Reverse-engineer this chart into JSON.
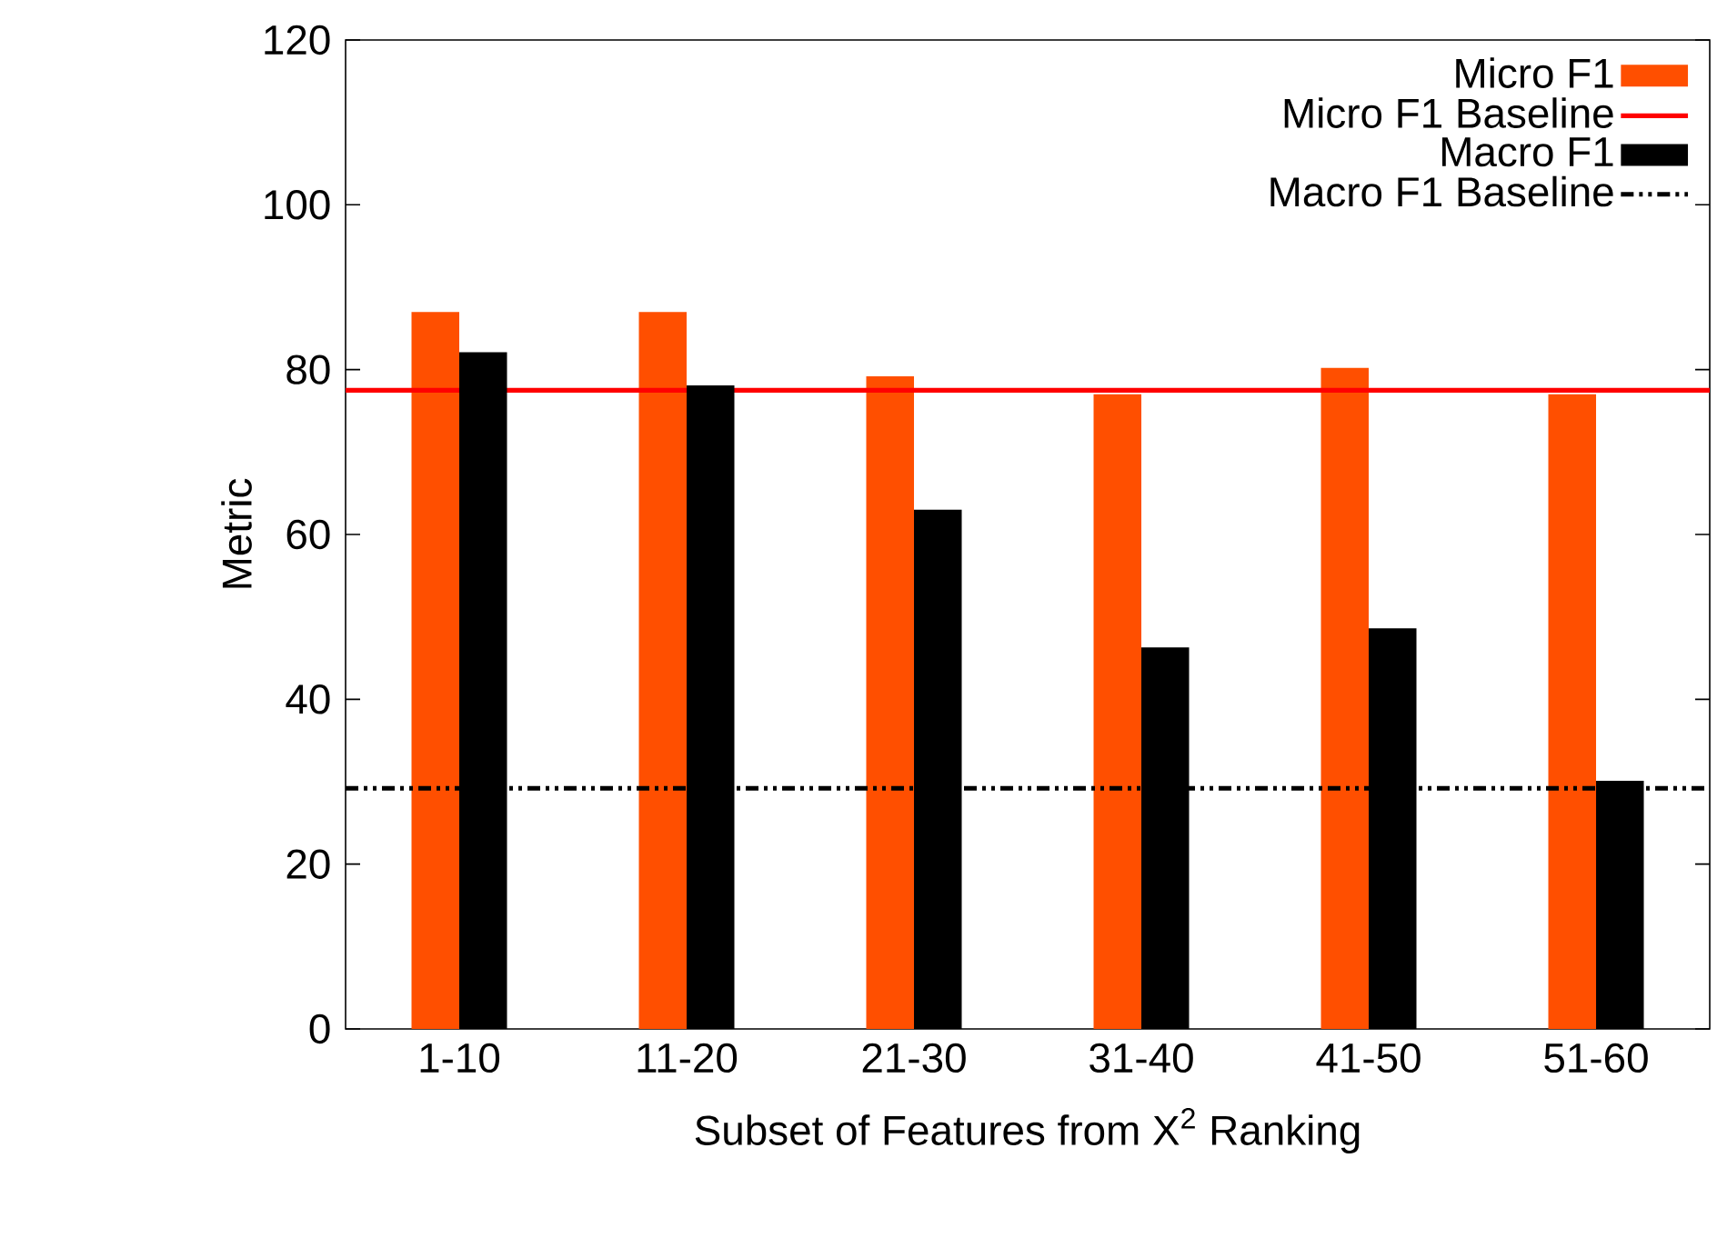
{
  "chart_data": {
    "type": "bar",
    "xlabel": "Subset of Features from X$^{2}$ Ranking",
    "ylabel": "Metric",
    "categories": [
      "1-10",
      "11-20",
      "21-30",
      "31-40",
      "41-50",
      "51-60"
    ],
    "series": [
      {
        "name": "Micro F1",
        "color": "#ff4f00",
        "values": [
          87,
          87,
          79.2,
          77,
          80.2,
          77
        ]
      },
      {
        "name": "Macro F1",
        "color": "#000000",
        "values": [
          82.1,
          78.1,
          63,
          46.3,
          48.6,
          30.1
        ]
      }
    ],
    "ref_lines": [
      {
        "axis": "y",
        "value": 77.5,
        "label": "Micro F1 Baseline",
        "color": "#ff0000",
        "line_style": "solid"
      },
      {
        "axis": "y",
        "value": 29.2,
        "label": "Macro F1 Baseline",
        "color": "#000000",
        "line_style": "dashed"
      }
    ],
    "ylim": [
      0,
      120
    ],
    "yticks": [
      0,
      20,
      40,
      60,
      80,
      100,
      120
    ],
    "grid": false,
    "legend": "top right"
  }
}
